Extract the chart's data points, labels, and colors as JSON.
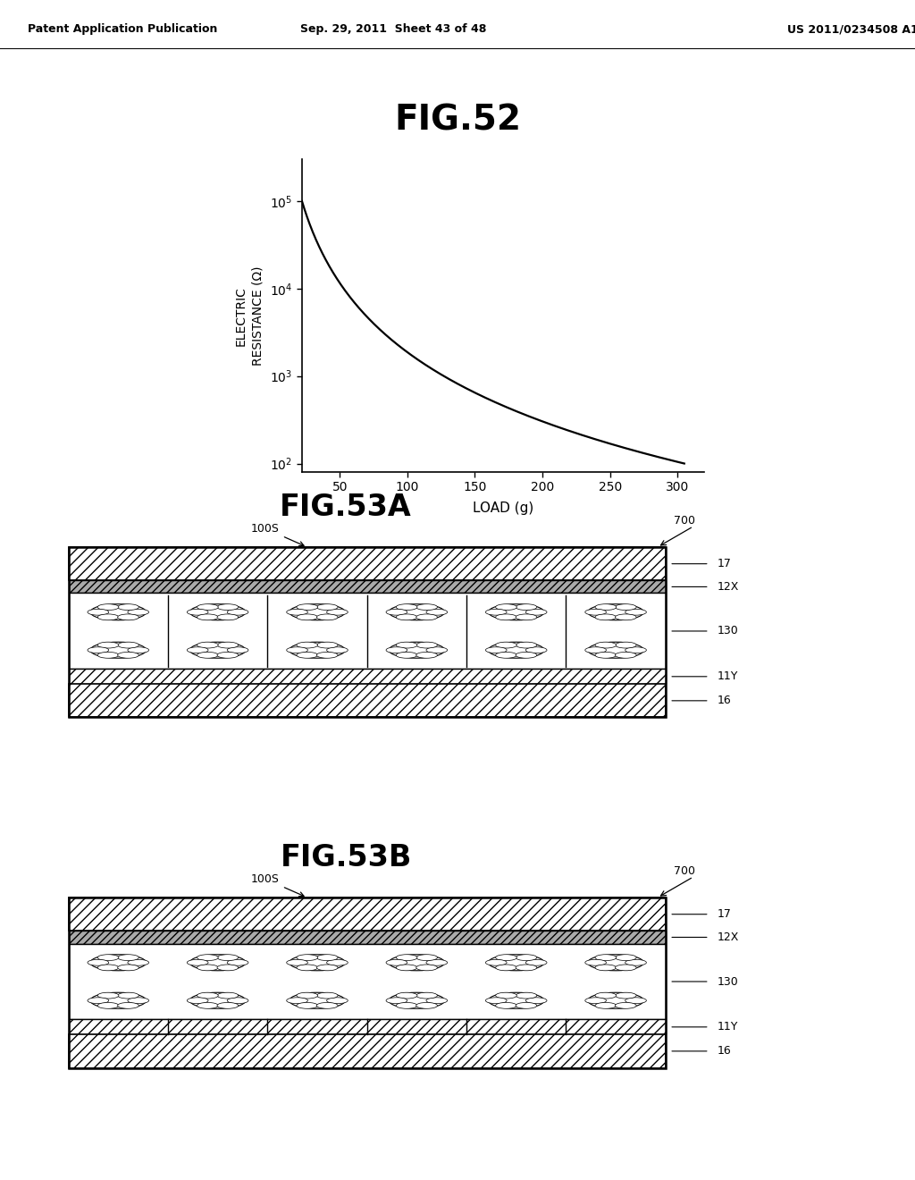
{
  "bg_color": "#ffffff",
  "header_left": "Patent Application Publication",
  "header_center": "Sep. 29, 2011  Sheet 43 of 48",
  "header_right": "US 2011/0234508 A1",
  "fig52_title": "FIG.52",
  "fig52_ylabel_line1": "ELECTRIC",
  "fig52_ylabel_line2": "RESISTANCE (Ω)",
  "fig52_xlabel": "LOAD (g)",
  "fig52_xticks": [
    50,
    100,
    150,
    200,
    250,
    300
  ],
  "fig53a_title": "FIG.53A",
  "fig53b_title": "FIG.53B",
  "layer_labels": [
    "17",
    "12X",
    "130",
    "11Y",
    "16"
  ],
  "label_100S": "100S",
  "label_700": "700"
}
